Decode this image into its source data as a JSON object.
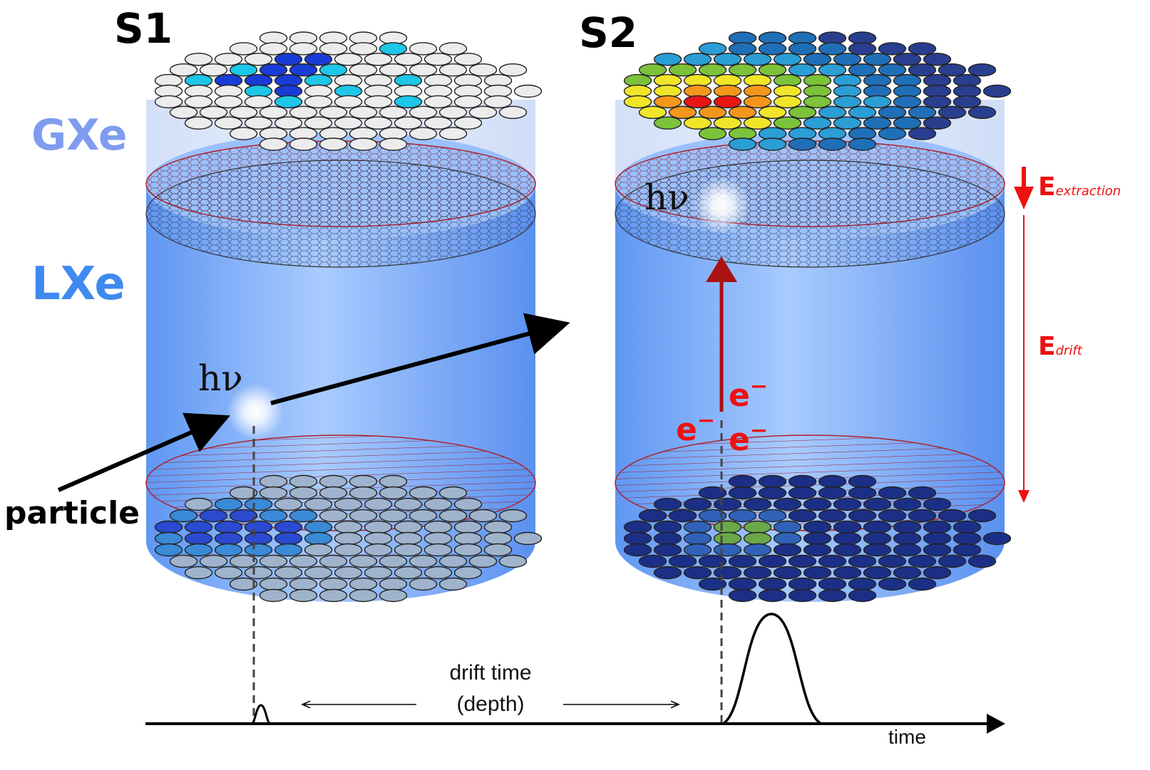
{
  "title_s1": "S1",
  "title_s2": "S2",
  "phase_gas": "GXe",
  "phase_liquid": "LXe",
  "photon": "hν",
  "particle": "particle",
  "electron": "e",
  "electron_sup": "−",
  "field_extraction_main": "E",
  "field_extraction_sub": "extraction",
  "field_drift_main": "E",
  "field_drift_sub": "drift",
  "drift_time_line1": "drift time",
  "drift_time_line2": "(depth)",
  "time_axis": "time",
  "colors": {
    "cylinder": "#6aa6ff",
    "gas_label": "#7f9cf0",
    "liquid_label": "#3f8af0",
    "field": "#ee1111",
    "electron_track": "#aa1111",
    "grid": "#b0202a"
  },
  "s1_top_pmt_hits": [
    {
      "row": 1,
      "col": 5,
      "level": "cyan"
    },
    {
      "row": 1,
      "col": 9,
      "level": "cyan"
    },
    {
      "row": 2,
      "col": 3,
      "level": "blue"
    },
    {
      "row": 2,
      "col": 4,
      "level": "blue"
    },
    {
      "row": 3,
      "col": 2,
      "level": "cyan"
    },
    {
      "row": 3,
      "col": 3,
      "level": "blue"
    },
    {
      "row": 3,
      "col": 4,
      "level": "blue"
    },
    {
      "row": 3,
      "col": 5,
      "level": "cyan"
    },
    {
      "row": 4,
      "col": 1,
      "level": "cyan"
    },
    {
      "row": 4,
      "col": 2,
      "level": "blue"
    },
    {
      "row": 4,
      "col": 3,
      "level": "blue"
    },
    {
      "row": 4,
      "col": 4,
      "level": "blue"
    },
    {
      "row": 4,
      "col": 5,
      "level": "cyan"
    },
    {
      "row": 4,
      "col": 8,
      "level": "cyan"
    },
    {
      "row": 5,
      "col": 3,
      "level": "cyan"
    },
    {
      "row": 5,
      "col": 4,
      "level": "blue"
    },
    {
      "row": 5,
      "col": 6,
      "level": "cyan"
    },
    {
      "row": 6,
      "col": 4,
      "level": "cyan"
    },
    {
      "row": 6,
      "col": 8,
      "level": "cyan"
    }
  ]
}
